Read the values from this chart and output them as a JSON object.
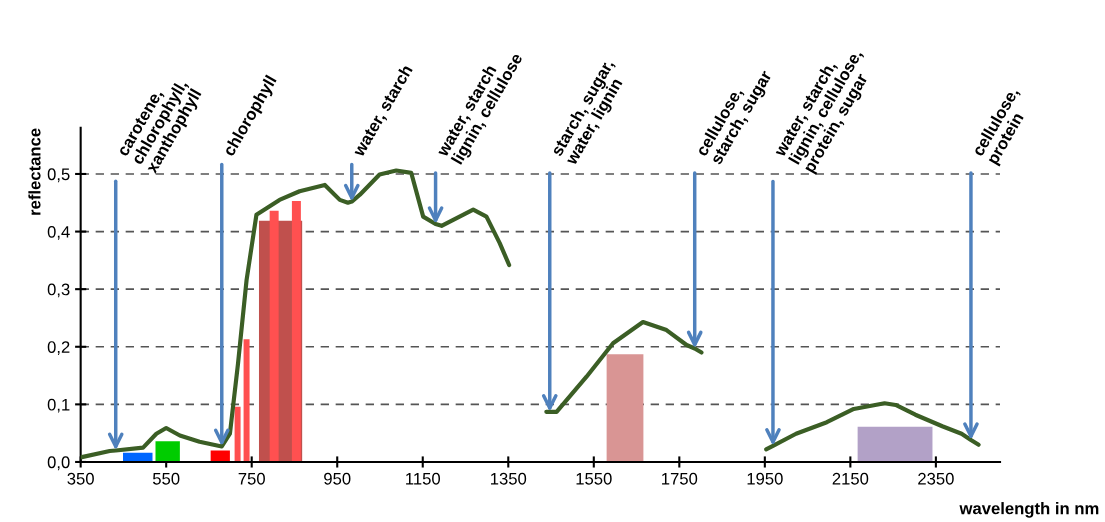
{
  "chart_data": {
    "type": "line",
    "xlabel": "wavelength in nm",
    "ylabel": "reflectance",
    "xlim": [
      350,
      2500
    ],
    "xticks": [
      350,
      550,
      750,
      950,
      1150,
      1350,
      1550,
      1750,
      1950,
      2150,
      2350
    ],
    "ylim": [
      0,
      0.58
    ],
    "yticks": [
      {
        "value": 0,
        "label": "0,0"
      },
      {
        "value": 0.1,
        "label": "0,1"
      },
      {
        "value": 0.2,
        "label": "0,2"
      },
      {
        "value": 0.3,
        "label": "0,3"
      },
      {
        "value": 0.4,
        "label": "0,4"
      },
      {
        "value": 0.5,
        "label": "0,5"
      }
    ],
    "grid": "y",
    "legend": false,
    "marker": "none",
    "line_style": "solid",
    "series": [
      {
        "type": "histogram",
        "color": "#0066ff",
        "bins": [
          449,
          518
        ],
        "values": [
          0.016
        ]
      },
      {
        "type": "histogram",
        "color": "#00cc00",
        "bins": [
          525,
          582
        ],
        "values": [
          0.036
        ]
      },
      {
        "type": "histogram",
        "color": "#ff0000",
        "bins": [
          654,
          699
        ],
        "values": [
          0.02
        ]
      },
      {
        "type": "histogram",
        "color": "#ff5050",
        "bins": [
          710,
          724
        ],
        "values": [
          0.096
        ]
      },
      {
        "type": "histogram",
        "color": "#ff5050",
        "bins": [
          731,
          745
        ],
        "values": [
          0.213
        ]
      },
      {
        "type": "histogram",
        "color": "#c0504d",
        "bins": [
          767,
          868
        ],
        "values": [
          0.419
        ]
      },
      {
        "type": "histogram",
        "color": "#ff5050",
        "bins": [
          792,
          813
        ],
        "values": [
          0.436
        ]
      },
      {
        "type": "histogram",
        "color": "#ff5050",
        "bins": [
          844,
          865
        ],
        "values": [
          0.453
        ]
      },
      {
        "type": "histogram",
        "color": "#d99594",
        "bins": [
          1580,
          1666
        ],
        "values": [
          0.187
        ]
      },
      {
        "type": "histogram",
        "color": "#b2a1c7",
        "bins": [
          2167,
          2342
        ],
        "values": [
          0.061
        ]
      },
      {
        "color": "#3b5e25",
        "x": [
          350,
          418,
          432,
          496,
          527,
          550,
          582,
          628,
          680,
          699,
          718,
          738,
          761,
          815,
          862,
          921,
          956,
          975,
          984,
          1003,
          1049,
          1088,
          1123,
          1151,
          1180,
          1194,
          1268,
          1299,
          1330,
          1352
        ],
        "values": [
          0.008,
          0.019,
          0.02,
          0.025,
          0.049,
          0.059,
          0.046,
          0.035,
          0.027,
          0.049,
          0.171,
          0.316,
          0.429,
          0.455,
          0.47,
          0.481,
          0.455,
          0.45,
          0.452,
          0.464,
          0.499,
          0.506,
          0.502,
          0.426,
          0.413,
          0.41,
          0.438,
          0.426,
          0.38,
          0.342
        ]
      },
      {
        "color": "#3b5e25",
        "x": [
          1439,
          1447,
          1463,
          1533,
          1595,
          1665,
          1720,
          1767,
          1786,
          1802
        ],
        "values": [
          0.087,
          0.087,
          0.087,
          0.148,
          0.206,
          0.243,
          0.229,
          0.203,
          0.197,
          0.19
        ]
      },
      {
        "color": "#3b5e25",
        "x": [
          1953,
          1969,
          2023,
          2095,
          2158,
          2230,
          2256,
          2302,
          2365,
          2410,
          2432,
          2450
        ],
        "values": [
          0.022,
          0.028,
          0.049,
          0.069,
          0.092,
          0.102,
          0.099,
          0.082,
          0.062,
          0.049,
          0.038,
          0.03
        ]
      }
    ],
    "annotations": [
      {
        "text": "carotene,\nchlorophyll,\nxanthophyll",
        "x": 432,
        "y": 0.02
      },
      {
        "text": "chlorophyll",
        "x": 680,
        "y": 0.027
      },
      {
        "text": "water, starch",
        "x": 984,
        "y": 0.452
      },
      {
        "text": "water, starch\nlignin, cellulose",
        "x": 1180,
        "y": 0.413
      },
      {
        "text": "starch, sugar,\nwater, lignin",
        "x": 1447,
        "y": 0.087
      },
      {
        "text": "cellulose,\nstarch, sugar",
        "x": 1786,
        "y": 0.197
      },
      {
        "text": "water, starch,\nlignin, cellulose,\nprotein, sugar",
        "x": 1969,
        "y": 0.028
      },
      {
        "text": "cellulose,\nprotein",
        "x": 2432,
        "y": 0.038
      }
    ]
  }
}
